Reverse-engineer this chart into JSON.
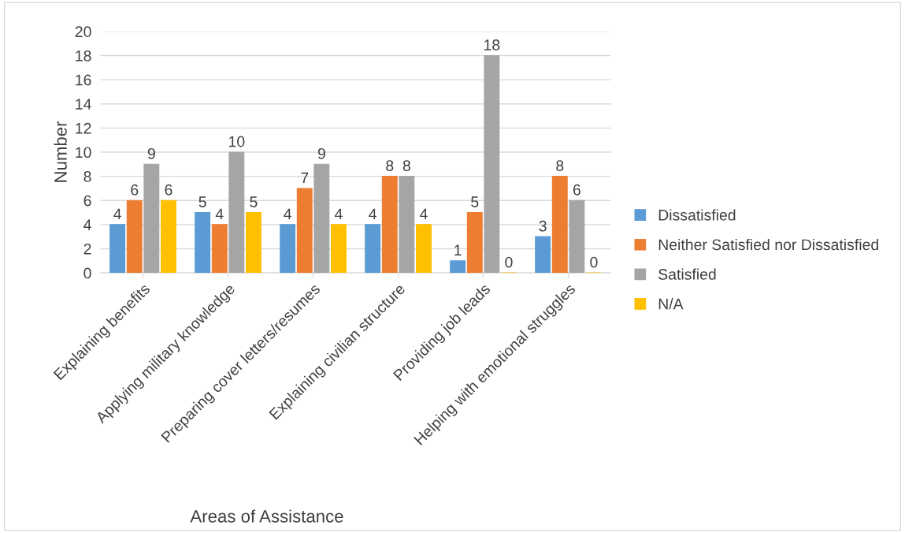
{
  "chart_data": {
    "type": "bar",
    "xlabel": "Areas of Assistance",
    "ylabel": "Number",
    "categories": [
      "Explaining benefits",
      "Applying military knowledge",
      "Preparing cover letters/resumes",
      "Explaining civilian structure",
      "Providing job leads",
      "Helping with emotional struggles"
    ],
    "series": [
      {
        "name": "Dissatisfied",
        "color": "#5b9bd5",
        "values": [
          4,
          5,
          4,
          4,
          1,
          3
        ]
      },
      {
        "name": "Neither Satisfied nor Dissatisfied",
        "color": "#ed7d31",
        "values": [
          6,
          4,
          7,
          8,
          5,
          8
        ]
      },
      {
        "name": "Satisfied",
        "color": "#a5a5a5",
        "values": [
          9,
          10,
          9,
          8,
          18,
          6
        ]
      },
      {
        "name": "N/A",
        "color": "#ffc000",
        "values": [
          6,
          5,
          4,
          4,
          0,
          0
        ]
      }
    ],
    "ylim": [
      0,
      20
    ],
    "yticks": [
      0,
      2,
      4,
      6,
      8,
      10,
      12,
      14,
      16,
      18,
      20
    ],
    "grid": "y",
    "legend": "right",
    "data_labels": true
  }
}
